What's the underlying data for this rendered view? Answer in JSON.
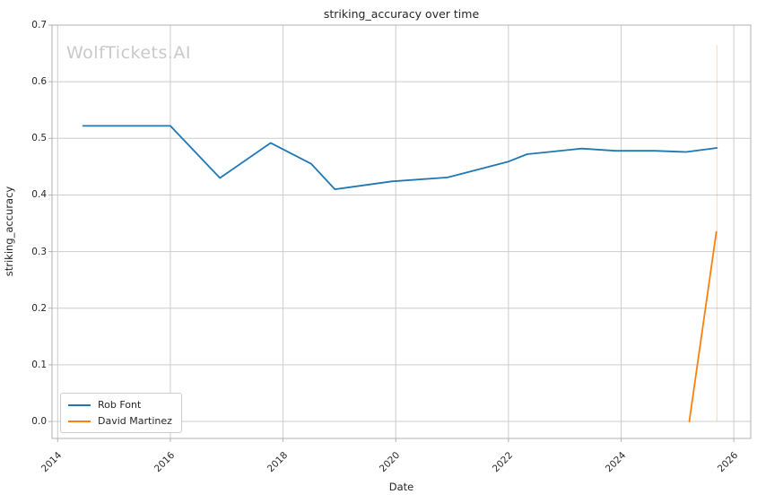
{
  "watermark": {
    "text": "WolfTickets.AI",
    "color": "#c9c9c9"
  },
  "chart_data": {
    "type": "line",
    "title": "striking_accuracy over time",
    "xlabel": "Date",
    "ylabel": "striking_accuracy",
    "xlim": [
      2013.9,
      2026.3
    ],
    "ylim": [
      -0.03,
      0.7
    ],
    "x_ticks": [
      2014,
      2016,
      2018,
      2020,
      2022,
      2024,
      2026
    ],
    "x_tick_labels": [
      "2014",
      "2016",
      "2018",
      "2020",
      "2022",
      "2024",
      "2026"
    ],
    "y_ticks": [
      0.0,
      0.1,
      0.2,
      0.3,
      0.4,
      0.5,
      0.6,
      0.7
    ],
    "y_tick_labels": [
      "0.0",
      "0.1",
      "0.2",
      "0.3",
      "0.4",
      "0.5",
      "0.6",
      "0.7"
    ],
    "grid": true,
    "grid_color": "#cccccc",
    "spine_color": "#b0b0b0",
    "legend": {
      "position": "lower-left",
      "entries": [
        "Rob Font",
        "David Martinez"
      ]
    },
    "series": [
      {
        "name": "Rob Font",
        "color": "#1f77b4",
        "points": [
          [
            2014.45,
            0.522
          ],
          [
            2016.0,
            0.522
          ],
          [
            2016.88,
            0.43
          ],
          [
            2017.78,
            0.492
          ],
          [
            2018.5,
            0.455
          ],
          [
            2018.92,
            0.41
          ],
          [
            2019.93,
            0.424
          ],
          [
            2020.92,
            0.431
          ],
          [
            2022.0,
            0.459
          ],
          [
            2022.33,
            0.472
          ],
          [
            2023.3,
            0.482
          ],
          [
            2023.9,
            0.478
          ],
          [
            2024.6,
            0.478
          ],
          [
            2025.15,
            0.476
          ],
          [
            2025.7,
            0.483
          ]
        ]
      },
      {
        "name": "David Martinez",
        "color": "#ff7f0e",
        "points": [
          [
            2025.21,
            0.0
          ],
          [
            2025.69,
            0.335
          ]
        ]
      }
    ],
    "annotations": [
      {
        "type": "vline",
        "x": 2025.7,
        "y_from": 0.0,
        "y_to": 0.665,
        "color": "#ff7f0e",
        "opacity": 0.3
      }
    ]
  }
}
